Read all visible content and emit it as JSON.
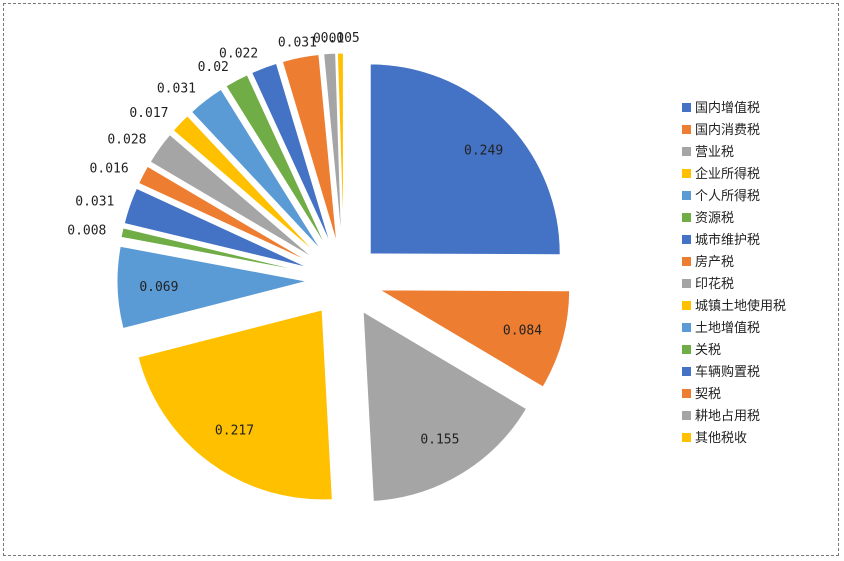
{
  "chart_data": {
    "type": "pie",
    "title": "",
    "exploded": true,
    "legend_position": "right",
    "categories": [
      "国内增值税",
      "国内消费税",
      "营业税",
      "企业所得税",
      "个人所得税",
      "资源税",
      "城市维护税",
      "房产税",
      "印花税",
      "城镇土地使用税",
      "土地增值税",
      "关税",
      "车辆购置税",
      "契税",
      "耕地占用税",
      "其他税收"
    ],
    "values": [
      0.249,
      0.084,
      0.155,
      0.217,
      0.069,
      0.008,
      0.031,
      0.016,
      0.028,
      0.017,
      0.031,
      0.02,
      0.022,
      0.031,
      0.01,
      0.005
    ],
    "labels": [
      "0.249",
      "0.084",
      "0.155",
      "0.217",
      "0.069",
      "0.008",
      "0.031",
      "0.016",
      "0.028",
      "0.017",
      "0.031",
      "0.02",
      "0.022",
      "0.031",
      "0.01",
      "0.005"
    ],
    "colors": [
      "#4472C4",
      "#ED7D31",
      "#A5A5A5",
      "#FFC000",
      "#5B9BD5",
      "#70AD47",
      "#4472C4",
      "#ED7D31",
      "#A5A5A5",
      "#FFC000",
      "#5B9BD5",
      "#70AD47",
      "#4472C4",
      "#ED7D31",
      "#A5A5A5",
      "#FFC000"
    ]
  }
}
